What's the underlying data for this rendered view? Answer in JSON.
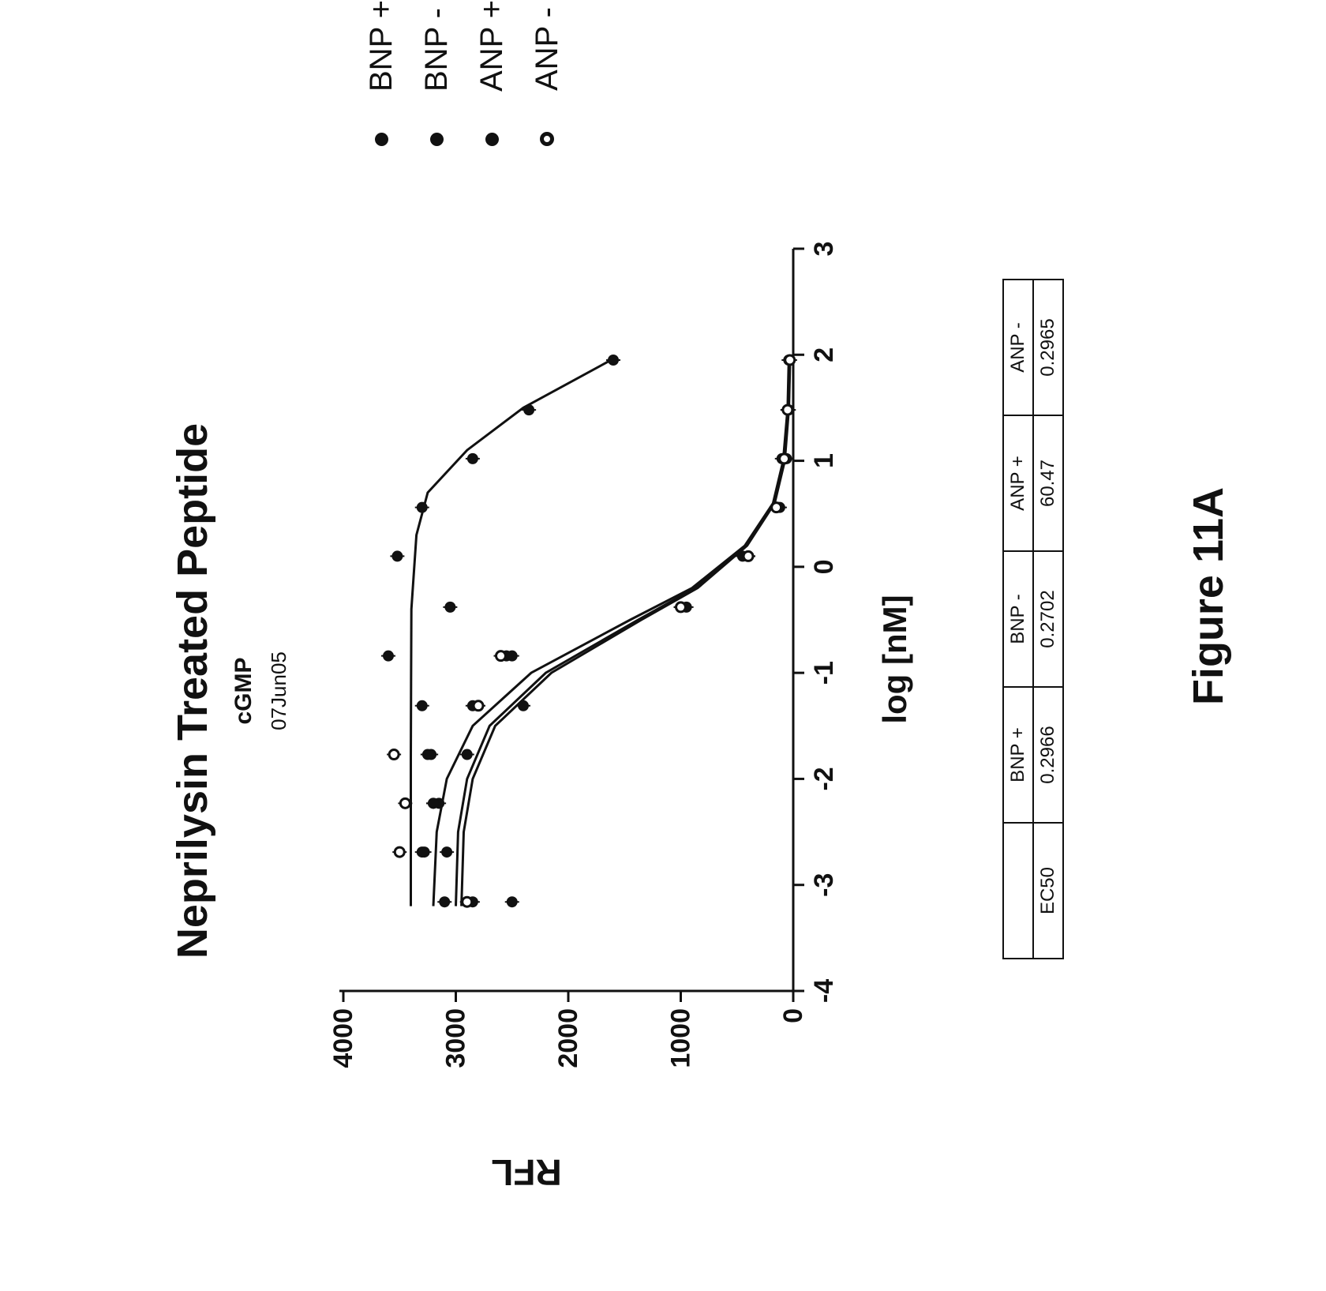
{
  "figure": {
    "title": "Neprilysin Treated Peptide",
    "subtitle": "cGMP",
    "date": "07Jun05",
    "label": "Figure 11A"
  },
  "chart_data": {
    "type": "scatter",
    "xlabel": "log [nM]",
    "ylabel": "RFL",
    "xlim": [
      -4,
      3
    ],
    "ylim": [
      0,
      4000
    ],
    "xticks": [
      "-4",
      "-3",
      "-2",
      "-1",
      "0",
      "1",
      "2",
      "3"
    ],
    "yticks": [
      "0",
      "1000",
      "2000",
      "3000",
      "4000"
    ],
    "legend_position": "right",
    "series": [
      {
        "name": "BNP +",
        "marker": "filled",
        "x": [
          -3.16,
          -2.69,
          -2.23,
          -1.77,
          -1.31,
          -0.84,
          -0.38,
          0.1,
          0.56,
          1.02,
          1.48,
          1.95
        ],
        "y": [
          2500,
          3300,
          3150,
          3250,
          3300,
          3600,
          3050,
          3520,
          3300,
          2850,
          2350,
          1600
        ],
        "fit_x": [
          -3.2,
          -2.5,
          -1.8,
          -1.1,
          -0.4,
          0.3,
          0.7,
          1.1,
          1.5,
          1.95
        ],
        "fit_y": [
          3400,
          3400,
          3400,
          3398,
          3395,
          3350,
          3250,
          2900,
          2400,
          1620
        ]
      },
      {
        "name": "BNP -",
        "marker": "filled",
        "x": [
          -3.16,
          -2.69,
          -2.23,
          -1.77,
          -1.31,
          -0.84,
          -0.38,
          0.1,
          0.56,
          1.02,
          1.48,
          1.95
        ],
        "y": [
          3100,
          3080,
          3200,
          2900,
          2850,
          2500,
          1000,
          400,
          150,
          100,
          50,
          40
        ],
        "fit_x": [
          -3.2,
          -2.5,
          -2.0,
          -1.5,
          -1.0,
          -0.5,
          -0.2,
          0.2,
          0.6,
          1.0,
          1.5,
          1.95
        ],
        "fit_y": [
          3200,
          3170,
          3080,
          2850,
          2330,
          1450,
          900,
          430,
          180,
          90,
          50,
          40
        ]
      },
      {
        "name": "ANP +",
        "marker": "filled",
        "x": [
          -3.16,
          -2.69,
          -2.23,
          -1.77,
          -1.31,
          -0.84,
          -0.38,
          0.1,
          0.56,
          1.02,
          1.48,
          1.95
        ],
        "y": [
          2850,
          3280,
          3200,
          3220,
          2400,
          2550,
          950,
          450,
          120,
          60,
          40,
          30
        ],
        "fit_x": [
          -3.2,
          -2.5,
          -2.0,
          -1.5,
          -1.0,
          -0.5,
          -0.2,
          0.2,
          0.6,
          1.0,
          1.5,
          1.95
        ],
        "fit_y": [
          3000,
          2980,
          2900,
          2700,
          2200,
          1380,
          870,
          420,
          170,
          80,
          40,
          30
        ]
      },
      {
        "name": "ANP -",
        "marker": "hollow",
        "x": [
          -3.16,
          -2.69,
          -2.23,
          -1.77,
          -1.31,
          -0.84,
          -0.38,
          0.1,
          0.56,
          1.02,
          1.48,
          1.95
        ],
        "y": [
          2900,
          3500,
          3450,
          3550,
          2800,
          2600,
          1000,
          400,
          150,
          80,
          50,
          30
        ],
        "fit_x": [
          -3.2,
          -2.5,
          -2.0,
          -1.5,
          -1.0,
          -0.5,
          -0.2,
          0.2,
          0.6,
          1.0,
          1.5,
          1.95
        ],
        "fit_y": [
          2950,
          2930,
          2850,
          2650,
          2150,
          1350,
          850,
          410,
          165,
          75,
          38,
          28
        ]
      }
    ]
  },
  "ec50_table": {
    "row_label": "EC50",
    "headers": [
      "BNP +",
      "BNP -",
      "ANP +",
      "ANP -"
    ],
    "values": [
      "0.2966",
      "0.2702",
      "60.47",
      "0.2965"
    ]
  }
}
